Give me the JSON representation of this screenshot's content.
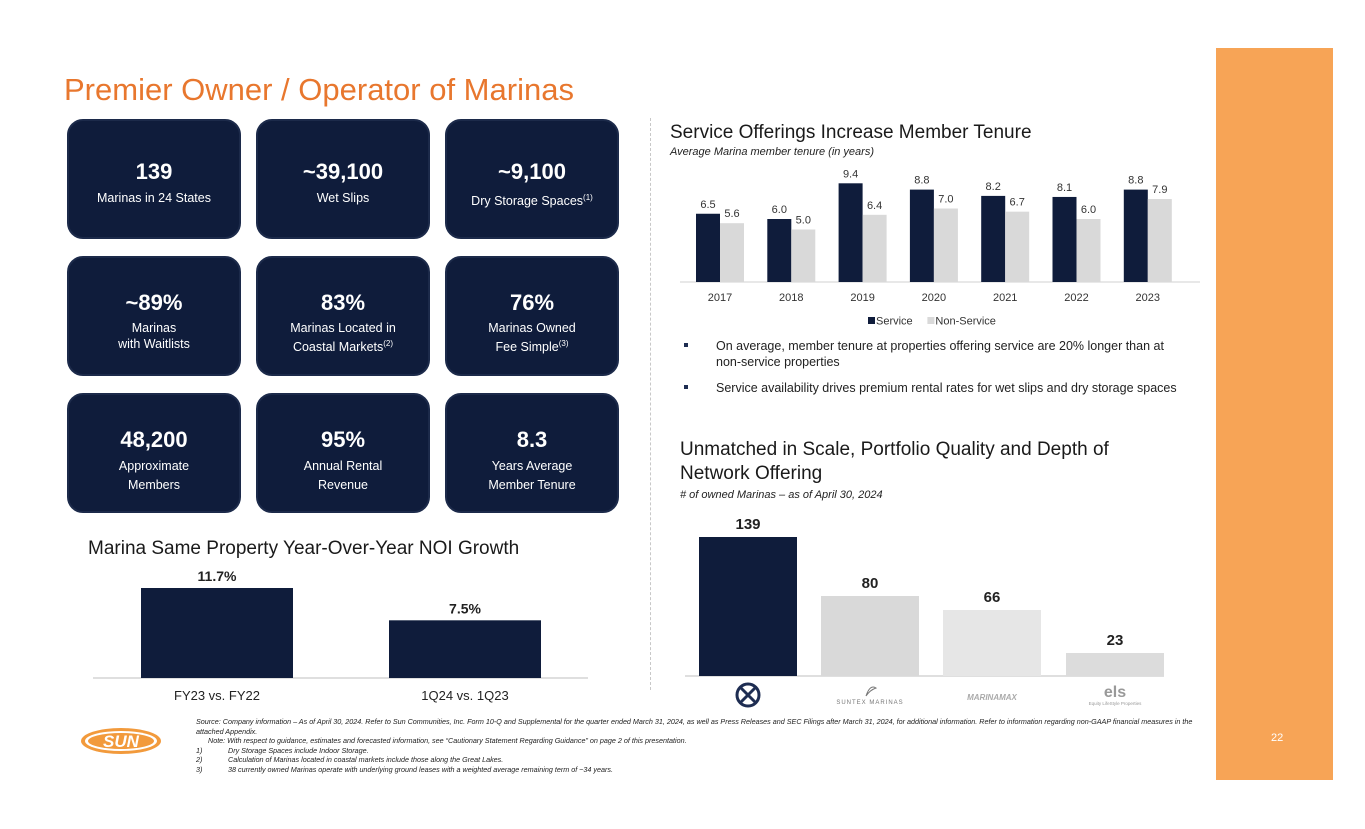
{
  "page_title": "Premier Owner / Operator of Marinas",
  "page_number": "22",
  "stats": [
    {
      "value": "139",
      "label1": "Marinas in 24 States",
      "label2": "",
      "sup": ""
    },
    {
      "value": "~39,100",
      "label1": "Wet Slips",
      "label2": "",
      "sup": ""
    },
    {
      "value": "~9,100",
      "label1": "Dry Storage Spaces",
      "label2": "",
      "sup": "(1)"
    },
    {
      "value": "~89%",
      "label1": "Marinas",
      "label2": "with Waitlists",
      "sup": ""
    },
    {
      "value": "83%",
      "label1": "Marinas Located in",
      "label2": "Coastal Markets",
      "sup": "(2)"
    },
    {
      "value": "76%",
      "label1": "Marinas Owned",
      "label2": "Fee Simple",
      "sup": "(3)"
    },
    {
      "value": "48,200",
      "label1": "Approximate",
      "label2": "Members",
      "sup": ""
    },
    {
      "value": "95%",
      "label1": "Annual Rental",
      "label2": "Revenue",
      "sup": ""
    },
    {
      "value": "8.3",
      "label1": "Years Average",
      "label2": "Member Tenure",
      "sup": ""
    }
  ],
  "tenure_section": {
    "heading": "Service Offerings Increase Member Tenure",
    "subheading": "Average Marina member tenure (in years)"
  },
  "bullets": [
    "On average, member tenure at properties offering service are 20% longer than at non-service properties",
    "Service availability drives premium rental rates for wet slips and dry storage spaces"
  ],
  "scale_section": {
    "heading1": "Unmatched in Scale, Portfolio Quality and Depth of",
    "heading2": "Network Offering",
    "subheading": "# of owned Marinas – as of April 30, 2024"
  },
  "noi_section": {
    "heading": "Marina Same Property Year-Over-Year NOI Growth"
  },
  "logos": {
    "suntex": "SUNTEX MARINAS",
    "marinamax": "MARINAMAX",
    "els": "els",
    "els_sub": "Equity LifeStyle Properties",
    "sun": "SUN"
  },
  "colors": {
    "accent": "#e8772e",
    "navy": "#0f1c3b",
    "orange_bar": "#f7a456",
    "light_grey": "#d9d9d9"
  },
  "footnotes": {
    "source": "Source: Company information – As of April 30, 2024. Refer to Sun Communities, Inc. Form 10-Q and Supplemental for the quarter ended March 31, 2024, as well as Press Releases and SEC Filings after March 31, 2024, for additional information. Refer to information regarding non-GAAP financial measures in the attached Appendix.",
    "note": "Note: With respect to guidance, estimates and forecasted information, see “Cautionary Statement Regarding Guidance” on page 2 of this presentation.",
    "items": [
      {
        "num": "1)",
        "text": "Dry Storage Spaces include Indoor Storage."
      },
      {
        "num": "2)",
        "text": "Calculation of Marinas located in coastal markets include those along the Great Lakes."
      },
      {
        "num": "3)",
        "text": "38 currently owned Marinas operate with underlying ground leases with a weighted average remaining term of ~34 years."
      }
    ]
  },
  "chart_data": [
    {
      "type": "bar",
      "categories": [
        "2017",
        "2018",
        "2019",
        "2020",
        "2021",
        "2022",
        "2023"
      ],
      "series": [
        {
          "name": "Service",
          "values": [
            6.5,
            6.0,
            9.4,
            8.8,
            8.2,
            8.1,
            8.8
          ],
          "color": "#0f1c3b"
        },
        {
          "name": "Non-Service",
          "values": [
            5.6,
            5.0,
            6.4,
            7.0,
            6.7,
            6.0,
            7.9
          ],
          "color": "#d9d9d9"
        }
      ],
      "labels": [
        "6.5",
        "6.0",
        "9.4",
        "8.8",
        "8.2",
        "8.1",
        "8.8",
        "5.6",
        "5.0",
        "6.4",
        "7.0",
        "6.7",
        "6.0",
        "7.9"
      ],
      "legend": "bottom",
      "ylim": [
        0,
        10
      ]
    },
    {
      "type": "bar",
      "categories": [
        "FY23 vs. FY22",
        "1Q24 vs. 1Q23"
      ],
      "values": [
        11.7,
        7.5
      ],
      "labels": [
        "11.7%",
        "7.5%"
      ],
      "color": "#0f1c3b",
      "ylim": [
        0,
        13
      ]
    },
    {
      "type": "bar",
      "categories": [
        "SUN",
        "SUNTEX MARINAS",
        "MARINAMAX",
        "els"
      ],
      "values": [
        139,
        80,
        66,
        23
      ],
      "colors": [
        "#0f1c3b",
        "#d9d9d9",
        "#e6e6e6",
        "#dcdcdc"
      ],
      "ylim": [
        0,
        150
      ]
    }
  ]
}
